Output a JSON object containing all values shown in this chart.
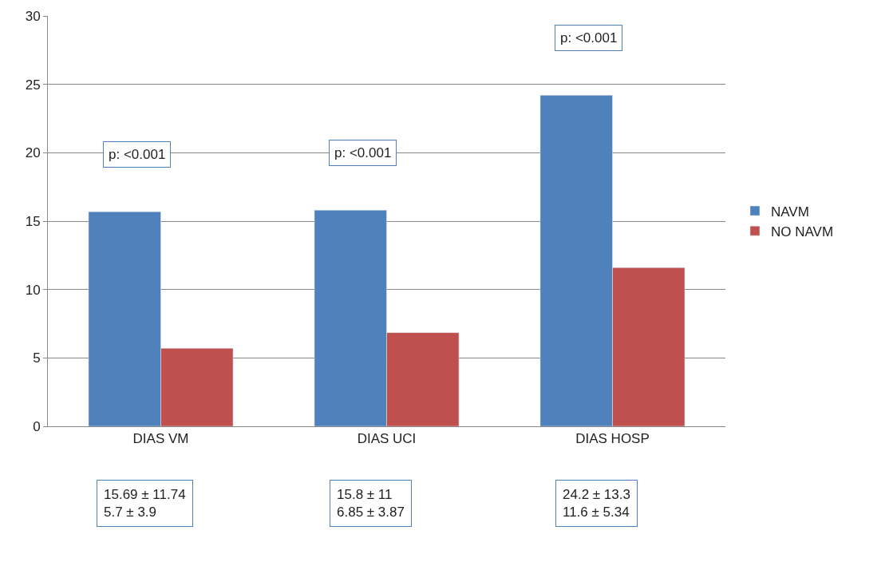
{
  "chart_data": {
    "type": "bar",
    "categories": [
      "DIAS VM",
      "DIAS UCI",
      "DIAS HOSP"
    ],
    "series": [
      {
        "name": "NAVM",
        "color": "#4f81bd",
        "values": [
          15.69,
          15.8,
          24.2
        ]
      },
      {
        "name": "NO NAVM",
        "color": "#c0504d",
        "values": [
          5.7,
          6.85,
          11.6
        ]
      }
    ],
    "ylim": [
      0,
      30
    ],
    "yticks": [
      0,
      5,
      10,
      15,
      20,
      25,
      30
    ],
    "grid": "y",
    "legend": "right",
    "annotations": [
      "p: <0.001",
      "p: <0.001",
      "p: <0.001",
      "15.69 ± 11.74\n5.7 ± 3.9",
      "15.8 ± 11\n6.85 ± 3.87",
      "24.2 ± 13.3\n11.6 ± 5.34"
    ]
  }
}
